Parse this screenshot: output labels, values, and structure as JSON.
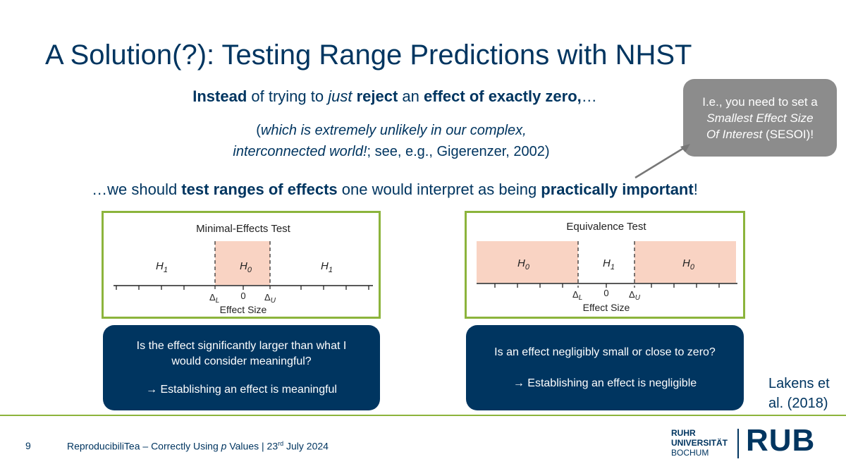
{
  "slide": {
    "title": "A Solution(?): Testing Range Predictions with NHST",
    "line1": {
      "part1": "Instead",
      "part2": " of trying to ",
      "part3": "just",
      "part4": " ",
      "part5": "reject",
      "part6": " an ",
      "part7": "effect of exactly zero,",
      "part8": "…"
    },
    "paren": {
      "a1": "(",
      "a2": "which is extremely unlikely in our complex,",
      "b1": "interconnected world!",
      "b2": "; see, e.g., Gigerenzer, 2002)"
    },
    "line3": {
      "part1": "…we should ",
      "part2": "test ranges of effects",
      "part3": " one would interpret as being ",
      "part4": "practically important",
      "part5": "!"
    },
    "callout": {
      "line1": "I.e., you need to set a",
      "line2": "Smallest Effect Size",
      "line3a": "Of Interest",
      "line3b": " (SESOI)!"
    },
    "citation": {
      "line1": "Lakens et",
      "line2": "al. (2018)"
    }
  },
  "left_panel": {
    "title": "Minimal-Effects Test",
    "h1_left": "H",
    "h1_left_sub": "1",
    "h0": "H",
    "h0_sub": "0",
    "h1_right": "H",
    "h1_right_sub": "1",
    "delta_l": "Δ",
    "delta_l_sub": "L",
    "zero": "0",
    "delta_u": "Δ",
    "delta_u_sub": "U",
    "xlabel": "Effect Size",
    "shade_color": "#f9d3c3"
  },
  "right_panel": {
    "title": "Equivalence Test",
    "h0_left": "H",
    "h0_left_sub": "0",
    "h1": "H",
    "h1_sub": "1",
    "h0_right": "H",
    "h0_right_sub": "0",
    "delta_l": "Δ",
    "delta_l_sub": "L",
    "zero": "0",
    "delta_u": "Δ",
    "delta_u_sub": "U",
    "xlabel": "Effect Size",
    "shade_color": "#f9d3c3"
  },
  "left_question": {
    "line1": "Is the effect significantly larger than what I",
    "line2": "would consider meaningful?",
    "line3": "→ Establishing an effect is meaningful"
  },
  "right_question": {
    "line1": "Is an effect negligibly small or close to zero?",
    "line2": "→ Establishing an effect is negligible"
  },
  "footer": {
    "page_number": "9",
    "text_a": "ReproducibiliTea – Correctly Using ",
    "text_p": "p",
    "text_b": " Values | 23",
    "text_sup": "rd",
    "text_c": " July 2024"
  },
  "logo": {
    "line1": "RUHR",
    "line2": "UNIVERSITÄT",
    "line3": "BOCHUM",
    "mark": "RUB"
  },
  "colors": {
    "navy": "#003560",
    "green": "#8cb43c",
    "callout_gray": "#8c8c8c",
    "shade": "#f9d3c3"
  }
}
